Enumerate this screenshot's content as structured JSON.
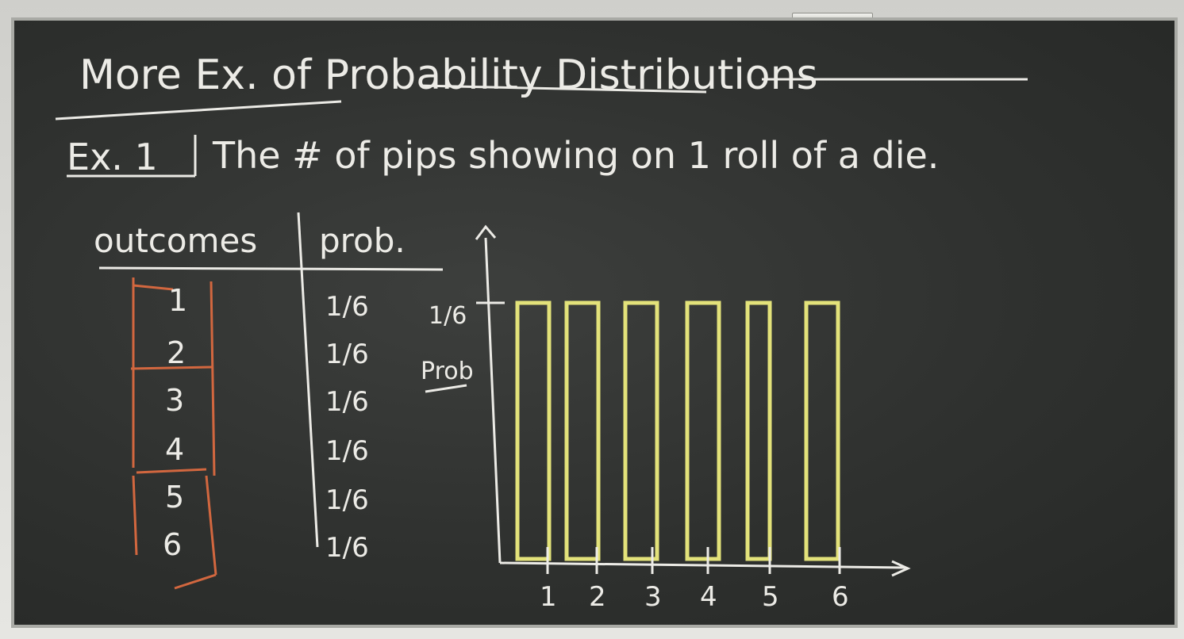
{
  "title": "More Ex. of Probability Distributions",
  "example": {
    "label": "Ex. 1",
    "text": "The # of pips showing on 1 roll of a die."
  },
  "table": {
    "headers": [
      "outcomes",
      "prob."
    ],
    "rows": [
      {
        "outcome": "1",
        "prob": "1/6"
      },
      {
        "outcome": "2",
        "prob": "1/6"
      },
      {
        "outcome": "3",
        "prob": "1/6"
      },
      {
        "outcome": "4",
        "prob": "1/6"
      },
      {
        "outcome": "5",
        "prob": "1/6"
      },
      {
        "outcome": "6",
        "prob": "1/6"
      }
    ]
  },
  "chart_data": {
    "type": "bar",
    "categories": [
      "1",
      "2",
      "3",
      "4",
      "5",
      "6"
    ],
    "values": [
      0.1667,
      0.1667,
      0.1667,
      0.1667,
      0.1667,
      0.1667
    ],
    "ylabel": "Prob",
    "y_tick_label": "1/6",
    "y_tick_value": 0.1667,
    "ylim": [
      0,
      0.2
    ],
    "bar_color": "#e3e27a"
  },
  "colors": {
    "chalk_white": "#ecebe6",
    "chalk_orange": "#d2673f",
    "chalk_yellow": "#e3e27a",
    "board": "#303230"
  }
}
